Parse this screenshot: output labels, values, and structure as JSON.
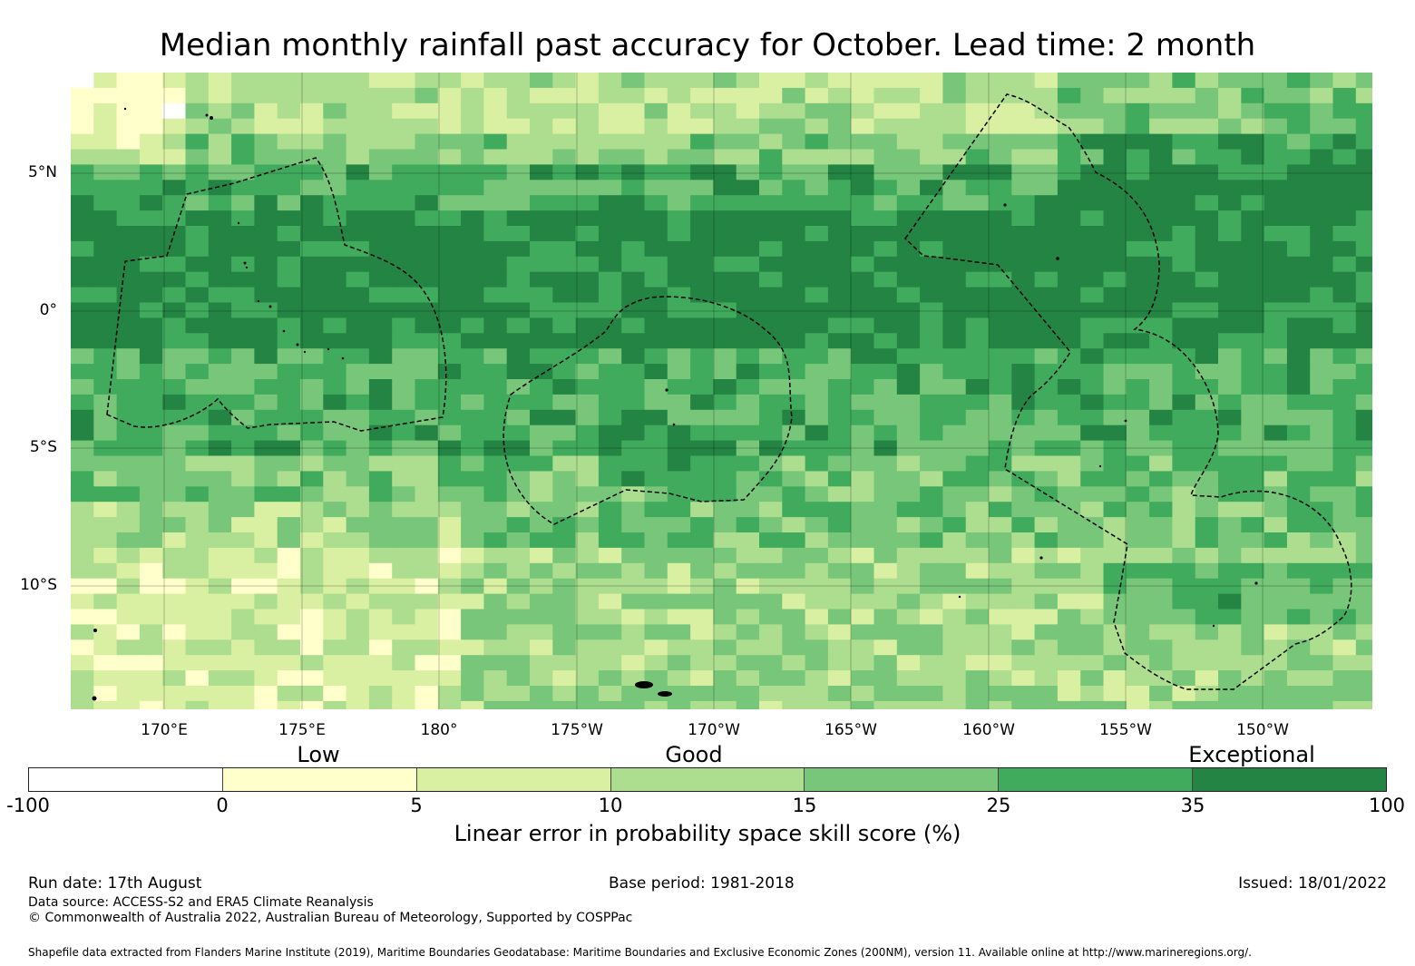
{
  "title": "Median monthly rainfall past accuracy for October. Lead time: 2 month",
  "map": {
    "lat_labels": [
      "5°N",
      "0°",
      "5°S",
      "10°S"
    ],
    "lon_labels": [
      "170°E",
      "175°E",
      "180°",
      "175°W",
      "170°W",
      "165°W",
      "160°W",
      "155°W",
      "150°W"
    ]
  },
  "legend": {
    "categories": [
      "Low",
      "Good",
      "Exceptional"
    ],
    "ticks": [
      "-100",
      "0",
      "5",
      "10",
      "15",
      "25",
      "35",
      "100"
    ],
    "bins": [
      {
        "range": "-100 to 0",
        "color": "#ffffff"
      },
      {
        "range": "0 to 5",
        "color": "#ffffcc"
      },
      {
        "range": "5 to 10",
        "color": "#d9f0a3"
      },
      {
        "range": "10 to 15",
        "color": "#addd8e"
      },
      {
        "range": "15 to 25",
        "color": "#78c679"
      },
      {
        "range": "25 to 35",
        "color": "#41ab5d"
      },
      {
        "range": "35 to 100",
        "color": "#238443"
      }
    ],
    "label": "Linear error in probability space skill score (%)"
  },
  "footer": {
    "run_date": "Run date: 17th August",
    "base_period": "Base period: 1981-2018",
    "issued": "Issued: 18/01/2022",
    "data_source": "Data source: ACCESS-S2 and ERA5 Climate Reanalysis",
    "copyright": "© Commonwealth of Australia 2022, Australian Bureau of Meteorology, Supported by COSPPac",
    "shapefile_note": "Shapefile data extracted from Flanders Marine Institute (2019), Maritime Boundaries Geodatabase: Maritime Boundaries and Exclusive Economic Zones (200NM), version 11. Available online at http://www.marineregions.org/."
  }
}
